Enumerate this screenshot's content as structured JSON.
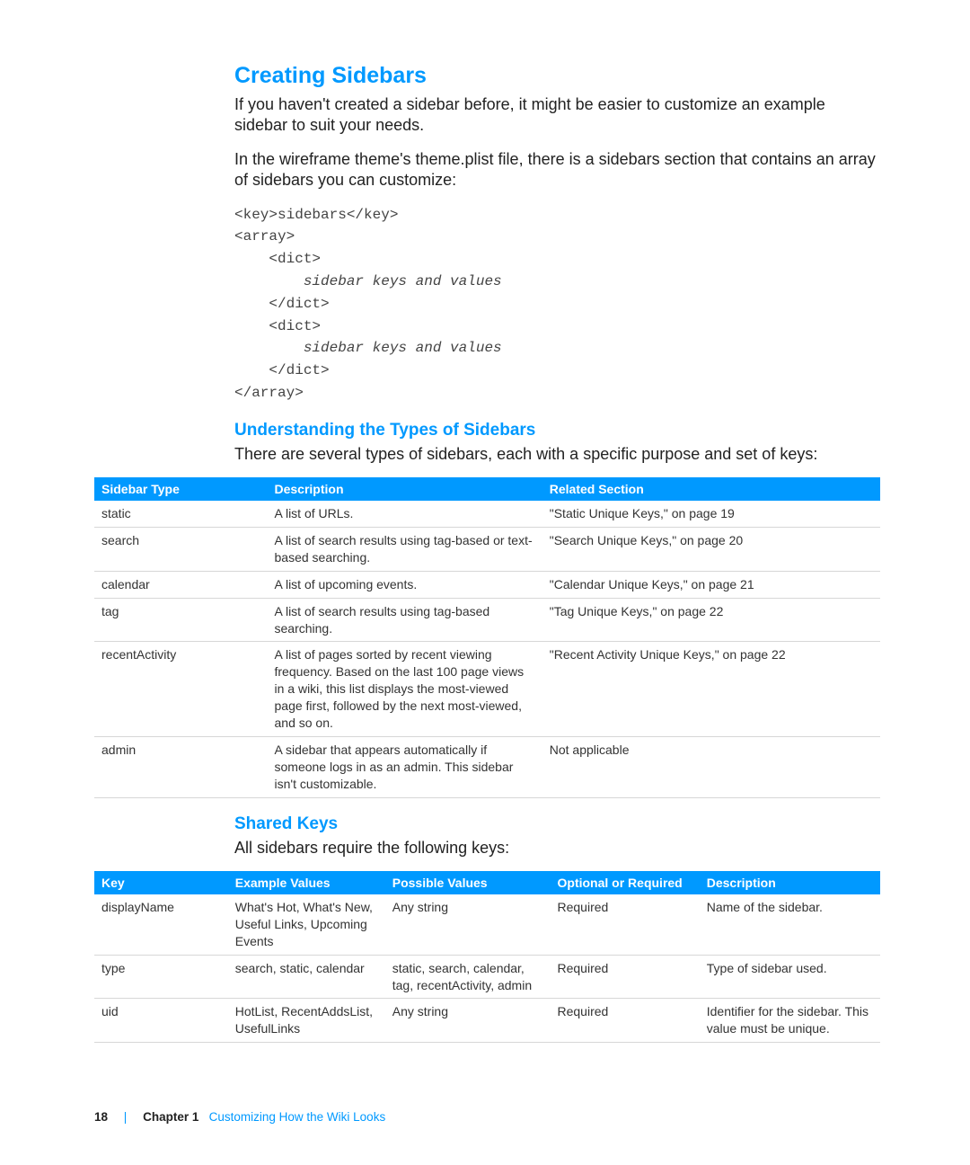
{
  "colors": {
    "accent": "#0099ff",
    "text": "#222222",
    "row_border": "#d7d7d7",
    "background": "#ffffff"
  },
  "section1": {
    "title": "Creating Sidebars",
    "para1": "If you haven't created a sidebar before, it might be easier to customize an example sidebar to suit your needs.",
    "para2": "In the wireframe theme's theme.plist file, there is a sidebars section that contains an array of sidebars you can customize:",
    "code_lines": [
      {
        "text": "<key>sidebars</key>",
        "indent": 0
      },
      {
        "text": "<array>",
        "indent": 0
      },
      {
        "text": "<dict>",
        "indent": 1
      },
      {
        "text": "sidebar keys and values",
        "indent": 2,
        "italic": true
      },
      {
        "text": "</dict>",
        "indent": 1
      },
      {
        "text": "<dict>",
        "indent": 1
      },
      {
        "text": "sidebar keys and values",
        "indent": 2,
        "italic": true
      },
      {
        "text": "</dict>",
        "indent": 1
      },
      {
        "text": "</array>",
        "indent": 0
      }
    ]
  },
  "section2": {
    "title": "Understanding the Types of Sidebars",
    "intro": "There are several types of sidebars, each with a specific purpose and set of keys:",
    "table": {
      "columns": [
        "Sidebar Type",
        "Description",
        "Related Section"
      ],
      "rows": [
        [
          "static",
          "A list of URLs.",
          "\"Static Unique Keys,\" on page 19"
        ],
        [
          "search",
          "A list of search results using tag-based or text-based searching.",
          "\"Search Unique Keys,\" on page 20"
        ],
        [
          "calendar",
          "A list of upcoming events.",
          "\"Calendar Unique Keys,\" on page 21"
        ],
        [
          "tag",
          "A list of search results using tag-based searching.",
          "\"Tag Unique Keys,\" on page 22"
        ],
        [
          "recentActivity",
          "A list of pages sorted by recent viewing frequency. Based on the last 100 page views in a wiki, this list displays the most-viewed page first, followed by the next most-viewed, and so on.",
          "\"Recent Activity Unique Keys,\" on page 22"
        ],
        [
          "admin",
          "A sidebar that appears automatically if someone logs in as an admin. This sidebar isn't customizable.",
          "Not applicable"
        ]
      ]
    }
  },
  "section3": {
    "title": "Shared Keys",
    "intro": "All sidebars require the following keys:",
    "table": {
      "columns": [
        "Key",
        "Example Values",
        "Possible Values",
        "Optional or Required",
        "Description"
      ],
      "rows": [
        [
          "displayName",
          "What's Hot, What's New, Useful Links, Upcoming Events",
          "Any string",
          "Required",
          "Name of the sidebar."
        ],
        [
          "type",
          "search, static, calendar",
          "static, search, calendar, tag, recentActivity, admin",
          "Required",
          "Type of sidebar used."
        ],
        [
          "uid",
          "HotList, RecentAddsList, UsefulLinks",
          "Any string",
          "Required",
          "Identifier for the sidebar. This value must be unique."
        ]
      ]
    }
  },
  "footer": {
    "page_number": "18",
    "chapter_label": "Chapter 1",
    "chapter_title": "Customizing How the Wiki Looks"
  }
}
